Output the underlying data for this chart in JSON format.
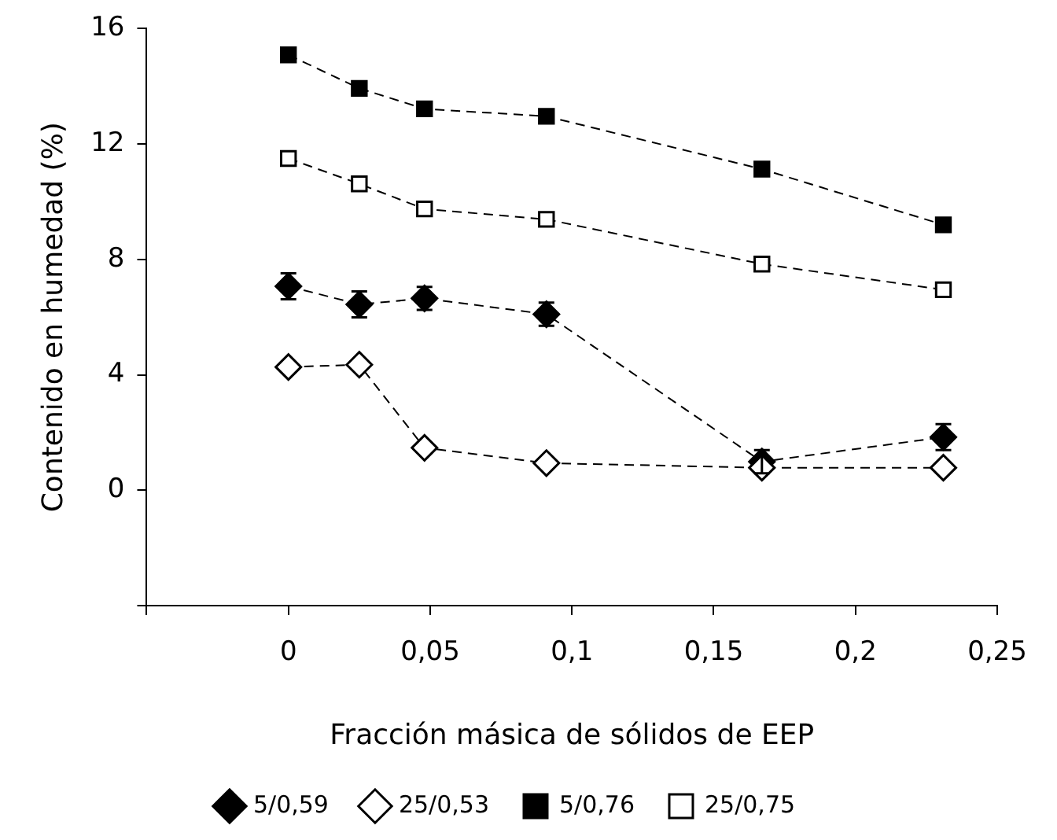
{
  "chart_data": {
    "type": "line",
    "xlabel": "Fracción másica de sólidos de EEP",
    "ylabel": "Contenido en humedad (%)",
    "x": [
      0,
      0.025,
      0.048,
      0.091,
      0.167,
      0.231
    ],
    "xlim": [
      -0.05,
      0.25
    ],
    "xticks": [
      {
        "value": -0.05,
        "label": null
      },
      0,
      {
        "value": 0.05,
        "label": "0,05"
      },
      {
        "value": 0.1,
        "label": "0,1"
      },
      {
        "value": 0.15,
        "label": "0,15"
      },
      {
        "value": 0.2,
        "label": "0,2"
      },
      {
        "value": 0.25,
        "label": "0,25"
      }
    ],
    "ylim": [
      -4,
      16
    ],
    "yticks": [
      {
        "value": -4,
        "label": null
      },
      0,
      4,
      8,
      12,
      16
    ],
    "grid": false,
    "legend": "bottom",
    "line_style": "dashed",
    "series": [
      {
        "name": "5/0,59",
        "color": "#000000",
        "marker": "diamond",
        "values": [
          7.07,
          6.44,
          6.65,
          6.1,
          0.99,
          1.84
        ],
        "errors": [
          0.45,
          0.45,
          0.4,
          0.4,
          0.4,
          0.45
        ]
      },
      {
        "name": "25/0,53",
        "color": "#ffffff",
        "marker": "diamond",
        "values": [
          4.27,
          4.35,
          1.47,
          0.94,
          0.78,
          0.78
        ]
      },
      {
        "name": "5/0,76",
        "color": "#000000",
        "marker": "square",
        "values": [
          15.09,
          13.93,
          13.22,
          12.96,
          11.13,
          9.2
        ]
      },
      {
        "name": "25/0,75",
        "color": "#ffffff",
        "marker": "square",
        "values": [
          11.5,
          10.62,
          9.75,
          9.39,
          7.84,
          6.95
        ]
      }
    ]
  }
}
